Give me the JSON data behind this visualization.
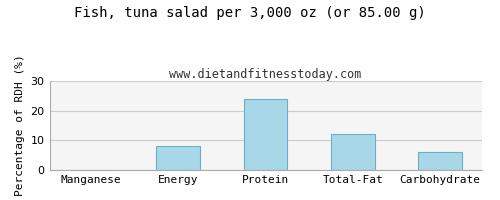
{
  "title": "Fish, tuna salad per 3,000 oz (or 85.00 g)",
  "subtitle": "www.dietandfitnesstoday.com",
  "categories": [
    "Manganese",
    "Energy",
    "Protein",
    "Total-Fat",
    "Carbohydrate"
  ],
  "values": [
    0,
    8,
    24,
    12,
    6
  ],
  "bar_color": "#a8d8e8",
  "bar_edgecolor": "#6aafc8",
  "ylabel": "Percentage of RDH (%)",
  "ylim": [
    0,
    30
  ],
  "yticks": [
    0,
    10,
    20,
    30
  ],
  "background_color": "#ffffff",
  "plot_bg_color": "#f5f5f5",
  "title_fontsize": 10,
  "subtitle_fontsize": 8.5,
  "ylabel_fontsize": 8,
  "tick_fontsize": 8,
  "grid_color": "#cccccc"
}
